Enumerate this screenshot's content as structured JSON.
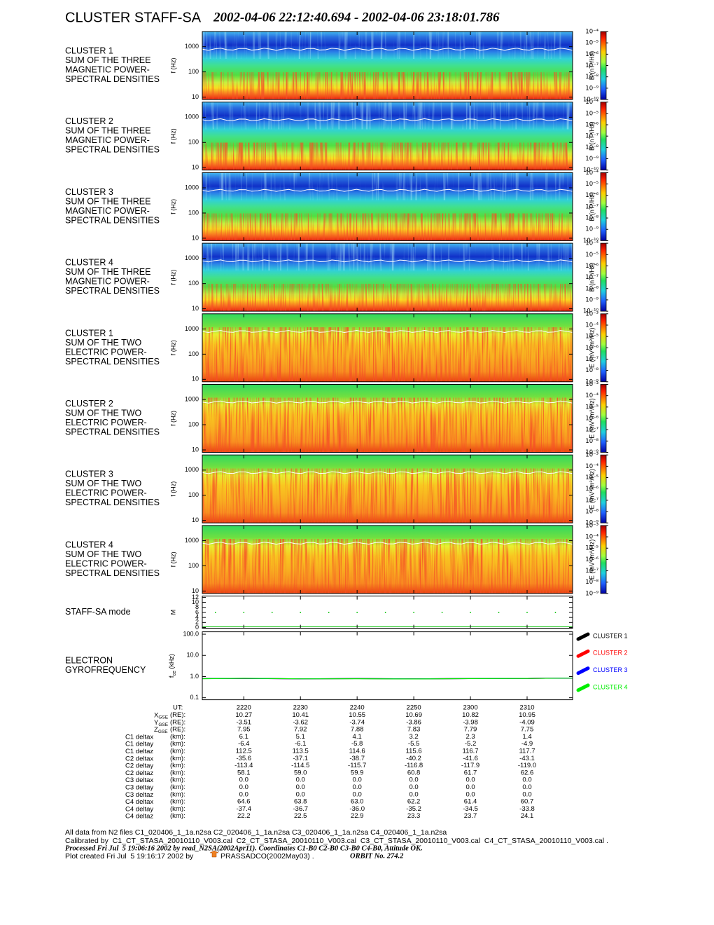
{
  "title": "CLUSTER STAFF-SA",
  "subtitle": "2002-04-06 22:12:40.694 - 2002-04-06 23:18:01.786",
  "chart_data": [
    {
      "type": "spectrogram",
      "label": [
        "CLUSTER 1",
        "SUM OF THE THREE",
        "MAGNETIC POWER-",
        "SPECTRAL DENSITIES"
      ],
      "ylabel": "f (Hz)",
      "log_scale": true,
      "ylim": [
        8,
        4000
      ],
      "yticks": [
        10,
        100,
        1000
      ],
      "colorbar_label": "B (nT²/Hz)",
      "colorbar_lim": [
        1e-10,
        0.0001
      ],
      "colorbar_ticks": [
        {
          "value": 0.0001,
          "label": "10⁻⁴"
        },
        {
          "value": 1e-05,
          "label": "10⁻⁵"
        },
        {
          "value": 1e-06,
          "label": "10⁻⁶"
        },
        {
          "value": 1e-07,
          "label": "10⁻⁷"
        },
        {
          "value": 1e-08,
          "label": "10⁻⁸"
        },
        {
          "value": 1e-09,
          "label": "10⁻⁹"
        },
        {
          "value": 1e-10,
          "label": "10⁻¹⁰"
        }
      ]
    },
    {
      "type": "spectrogram",
      "label": [
        "CLUSTER 2",
        "SUM OF THE THREE",
        "MAGNETIC POWER-",
        "SPECTRAL DENSITIES"
      ],
      "ylabel": "f (Hz)",
      "log_scale": true,
      "ylim": [
        8,
        4000
      ],
      "yticks": [
        10,
        100,
        1000
      ],
      "colorbar_label": "B (nT²/Hz)",
      "colorbar_lim": [
        1e-10,
        0.0001
      ],
      "colorbar_ticks": [
        {
          "value": 0.0001,
          "label": "10⁻⁴"
        },
        {
          "value": 1e-05,
          "label": "10⁻⁵"
        },
        {
          "value": 1e-06,
          "label": "10⁻⁶"
        },
        {
          "value": 1e-07,
          "label": "10⁻⁷"
        },
        {
          "value": 1e-08,
          "label": "10⁻⁸"
        },
        {
          "value": 1e-09,
          "label": "10⁻⁹"
        },
        {
          "value": 1e-10,
          "label": "10⁻¹⁰"
        }
      ]
    },
    {
      "type": "spectrogram",
      "label": [
        "CLUSTER 3",
        "SUM OF THE THREE",
        "MAGNETIC POWER-",
        "SPECTRAL DENSITIES"
      ],
      "ylabel": "f (Hz)",
      "log_scale": true,
      "ylim": [
        8,
        4000
      ],
      "yticks": [
        10,
        100,
        1000
      ],
      "colorbar_label": "B (nT²/Hz)",
      "colorbar_lim": [
        1e-10,
        0.0001
      ],
      "colorbar_ticks": [
        {
          "value": 0.0001,
          "label": "10⁻⁴"
        },
        {
          "value": 1e-05,
          "label": "10⁻⁵"
        },
        {
          "value": 1e-06,
          "label": "10⁻⁶"
        },
        {
          "value": 1e-07,
          "label": "10⁻⁷"
        },
        {
          "value": 1e-08,
          "label": "10⁻⁸"
        },
        {
          "value": 1e-09,
          "label": "10⁻⁹"
        },
        {
          "value": 1e-10,
          "label": "10⁻¹⁰"
        }
      ]
    },
    {
      "type": "spectrogram",
      "label": [
        "CLUSTER 4",
        "SUM OF THE THREE",
        "MAGNETIC POWER-",
        "SPECTRAL DENSITIES"
      ],
      "ylabel": "f (Hz)",
      "log_scale": true,
      "ylim": [
        8,
        4000
      ],
      "yticks": [
        10,
        100,
        1000
      ],
      "colorbar_label": "B (nT²/Hz)",
      "colorbar_lim": [
        1e-10,
        0.0001
      ],
      "colorbar_ticks": [
        {
          "value": 0.0001,
          "label": "10⁻⁴"
        },
        {
          "value": 1e-05,
          "label": "10⁻⁵"
        },
        {
          "value": 1e-06,
          "label": "10⁻⁶"
        },
        {
          "value": 1e-07,
          "label": "10⁻⁷"
        },
        {
          "value": 1e-08,
          "label": "10⁻⁸"
        },
        {
          "value": 1e-09,
          "label": "10⁻⁹"
        },
        {
          "value": 1e-10,
          "label": "10⁻¹⁰"
        }
      ]
    },
    {
      "type": "spectrogram",
      "label": [
        "CLUSTER 1",
        "SUM OF THE TWO",
        "ELECTRIC POWER-",
        "SPECTRAL DENSITIES"
      ],
      "ylabel": "f (Hz)",
      "log_scale": true,
      "ylim": [
        8,
        4000
      ],
      "yticks": [
        10,
        100,
        1000
      ],
      "colorbar_label": "E (mV²/m²/Hz)",
      "colorbar_lim": [
        1e-09,
        0.001
      ],
      "colorbar_ticks": [
        {
          "value": 0.001,
          "label": "10⁻³"
        },
        {
          "value": 0.0001,
          "label": "10⁻⁴"
        },
        {
          "value": 1e-05,
          "label": "10⁻⁵"
        },
        {
          "value": 1e-06,
          "label": "10⁻⁶"
        },
        {
          "value": 1e-07,
          "label": "10⁻⁷"
        },
        {
          "value": 1e-08,
          "label": "10⁻⁸"
        },
        {
          "value": 1e-09,
          "label": "10⁻⁹"
        }
      ]
    },
    {
      "type": "spectrogram",
      "label": [
        "CLUSTER 2",
        "SUM OF THE TWO",
        "ELECTRIC POWER-",
        "SPECTRAL DENSITIES"
      ],
      "ylabel": "f (Hz)",
      "log_scale": true,
      "ylim": [
        8,
        4000
      ],
      "yticks": [
        10,
        100,
        1000
      ],
      "colorbar_label": "E (mV²/m²/Hz)",
      "colorbar_lim": [
        1e-09,
        0.001
      ],
      "colorbar_ticks": [
        {
          "value": 0.001,
          "label": "10⁻³"
        },
        {
          "value": 0.0001,
          "label": "10⁻⁴"
        },
        {
          "value": 1e-05,
          "label": "10⁻⁵"
        },
        {
          "value": 1e-06,
          "label": "10⁻⁶"
        },
        {
          "value": 1e-07,
          "label": "10⁻⁷"
        },
        {
          "value": 1e-08,
          "label": "10⁻⁸"
        },
        {
          "value": 1e-09,
          "label": "10⁻⁹"
        }
      ]
    },
    {
      "type": "spectrogram",
      "label": [
        "CLUSTER 3",
        "SUM OF THE TWO",
        "ELECTRIC POWER-",
        "SPECTRAL DENSITIES"
      ],
      "ylabel": "f (Hz)",
      "log_scale": true,
      "ylim": [
        8,
        4000
      ],
      "yticks": [
        10,
        100,
        1000
      ],
      "colorbar_label": "E (mV²/m²/Hz)",
      "colorbar_lim": [
        1e-09,
        0.001
      ],
      "colorbar_ticks": [
        {
          "value": 0.001,
          "label": "10⁻³"
        },
        {
          "value": 0.0001,
          "label": "10⁻⁴"
        },
        {
          "value": 1e-05,
          "label": "10⁻⁵"
        },
        {
          "value": 1e-06,
          "label": "10⁻⁶"
        },
        {
          "value": 1e-07,
          "label": "10⁻⁷"
        },
        {
          "value": 1e-08,
          "label": "10⁻⁸"
        },
        {
          "value": 1e-09,
          "label": "10⁻⁹"
        }
      ]
    },
    {
      "type": "spectrogram",
      "label": [
        "CLUSTER 4",
        "SUM OF THE TWO",
        "ELECTRIC POWER-",
        "SPECTRAL DENSITIES"
      ],
      "ylabel": "f (Hz)",
      "log_scale": true,
      "ylim": [
        8,
        4000
      ],
      "yticks": [
        10,
        100,
        1000
      ],
      "colorbar_label": "E (mV²/m²/Hz)",
      "colorbar_lim": [
        1e-09,
        0.001
      ],
      "colorbar_ticks": [
        {
          "value": 0.001,
          "label": "10⁻³"
        },
        {
          "value": 0.0001,
          "label": "10⁻⁴"
        },
        {
          "value": 1e-05,
          "label": "10⁻⁵"
        },
        {
          "value": 1e-06,
          "label": "10⁻⁶"
        },
        {
          "value": 1e-07,
          "label": "10⁻⁷"
        },
        {
          "value": 1e-08,
          "label": "10⁻⁸"
        },
        {
          "value": 1e-09,
          "label": "10⁻⁹"
        }
      ]
    },
    {
      "type": "scatter",
      "label": [
        "STAFF-SA mode"
      ],
      "ylabel": "M",
      "ylim": [
        -0.3,
        12.5
      ],
      "yticks": [
        0,
        2,
        4,
        6,
        8,
        10,
        12
      ],
      "xlim": [
        12.678,
        78.03
      ],
      "x": [
        15,
        20,
        25,
        30,
        35,
        40,
        45,
        50,
        55,
        60,
        65,
        70,
        75
      ],
      "values": [
        6,
        6,
        6,
        6,
        6,
        6,
        6,
        6,
        6,
        6,
        6,
        6,
        6
      ],
      "color": "#00c000"
    },
    {
      "type": "line",
      "label": [
        "ELECTRON",
        "GYROFREQUENCY"
      ],
      "ylabel": [
        "f",
        "ce",
        " (kHz)"
      ],
      "log_scale": true,
      "ylim": [
        0.08,
        130
      ],
      "yticks": [
        0.1,
        {
          "value": 1,
          "label": "1.0"
        },
        {
          "value": 10,
          "label": "10.0"
        },
        {
          "value": 100,
          "label": "100.0"
        }
      ],
      "xlim": [
        12.678,
        78.03
      ],
      "xticks": [
        {
          "value": 20,
          "label": "2220"
        },
        {
          "value": 30,
          "label": "2230"
        },
        {
          "value": 40,
          "label": "2240"
        },
        {
          "value": 50,
          "label": "2250"
        },
        {
          "value": 60,
          "label": "2300"
        },
        {
          "value": 70,
          "label": "2310"
        }
      ],
      "legend": "right",
      "series": [
        {
          "name": "CLUSTER 1",
          "color": "#000000",
          "x": [
            12.7,
            20,
            30,
            40,
            50,
            60,
            70,
            78
          ],
          "values": [
            0.8,
            0.82,
            0.78,
            0.8,
            0.78,
            0.8,
            0.82,
            0.85
          ]
        },
        {
          "name": "CLUSTER 2",
          "color": "#ff0000",
          "x": [
            12.7,
            20,
            30,
            40,
            50,
            60,
            70,
            78
          ],
          "values": [
            0.8,
            0.82,
            0.78,
            0.8,
            0.78,
            0.8,
            0.82,
            0.85
          ]
        },
        {
          "name": "CLUSTER 3",
          "color": "#0000ff",
          "x": [
            12.7,
            20,
            30,
            40,
            50,
            60,
            70,
            78
          ],
          "values": [
            0.8,
            0.82,
            0.78,
            0.8,
            0.78,
            0.8,
            0.82,
            0.85
          ]
        },
        {
          "name": "CLUSTER 4",
          "color": "#00ee00",
          "x": [
            12.7,
            20,
            30,
            40,
            50,
            60,
            70,
            78
          ],
          "values": [
            0.79,
            0.83,
            0.78,
            0.79,
            0.77,
            0.8,
            0.82,
            0.84
          ]
        }
      ]
    }
  ],
  "ephemeris": {
    "ut_label": "UT:",
    "rows": [
      {
        "name": "X",
        "sub": "GSE",
        "unit": "(RE):",
        "values": [
          "10.27",
          "10.41",
          "10.55",
          "10.69",
          "10.82",
          "10.95"
        ]
      },
      {
        "name": "Y",
        "sub": "GSE",
        "unit": "(RE):",
        "values": [
          "-3.51",
          "-3.62",
          "-3.74",
          "-3.86",
          "-3.98",
          "-4.09"
        ]
      },
      {
        "name": "Z",
        "sub": "GSE",
        "unit": "(RE):",
        "values": [
          "7.95",
          "7.92",
          "7.88",
          "7.83",
          "7.79",
          "7.75"
        ]
      },
      {
        "name": "C1 deltax",
        "unit": "(km):",
        "values": [
          "6.1",
          "5.1",
          "4.1",
          "3.2",
          "2.3",
          "1.4"
        ]
      },
      {
        "name": "C1 deltay",
        "unit": "(km):",
        "values": [
          "-6.4",
          "-6.1",
          "-5.8",
          "-5.5",
          "-5.2",
          "-4.9"
        ]
      },
      {
        "name": "C1 deltaz",
        "unit": "(km):",
        "values": [
          "112.5",
          "113.5",
          "114.6",
          "115.6",
          "116.7",
          "117.7"
        ]
      },
      {
        "name": "C2 deltax",
        "unit": "(km):",
        "values": [
          "-35.6",
          "-37.1",
          "-38.7",
          "-40.2",
          "-41.6",
          "-43.1"
        ]
      },
      {
        "name": "C2 deltay",
        "unit": "(km):",
        "values": [
          "-113.4",
          "-114.5",
          "-115.7",
          "-116.8",
          "-117.9",
          "-119.0"
        ]
      },
      {
        "name": "C2 deltaz",
        "unit": "(km):",
        "values": [
          "58.1",
          "59.0",
          "59.9",
          "60.8",
          "61.7",
          "62.6"
        ]
      },
      {
        "name": "C3 deltax",
        "unit": "(km):",
        "values": [
          "0.0",
          "0.0",
          "0.0",
          "0.0",
          "0.0",
          "0.0"
        ]
      },
      {
        "name": "C3 deltay",
        "unit": "(km):",
        "values": [
          "0.0",
          "0.0",
          "0.0",
          "0.0",
          "0.0",
          "0.0"
        ]
      },
      {
        "name": "C3 deltaz",
        "unit": "(km):",
        "values": [
          "0.0",
          "0.0",
          "0.0",
          "0.0",
          "0.0",
          "0.0"
        ]
      },
      {
        "name": "C4 deltax",
        "unit": "(km):",
        "values": [
          "64.6",
          "63.8",
          "63.0",
          "62.2",
          "61.4",
          "60.7"
        ]
      },
      {
        "name": "C4 deltay",
        "unit": "(km):",
        "values": [
          "-37.4",
          "-36.7",
          "-36.0",
          "-35.2",
          "-34.5",
          "-33.8"
        ]
      },
      {
        "name": "C4 deltaz",
        "unit": "(km):",
        "values": [
          "22.2",
          "22.5",
          "22.9",
          "23.3",
          "23.7",
          "24.1"
        ]
      }
    ]
  },
  "footer": {
    "files": "All data from N2 files C1_020406_1_1a.n2sa C2_020406_1_1a.n2sa C3_020406_1_1a.n2sa C4_020406_1_1a.n2sa",
    "calibration": "Calibrated by  C1_CT_STASA_20010110_V003.cal  C2_CT_STASA_20010110_V003.cal  C3_CT_STASA_20010110_V003.cal  C4_CT_STASA_20010110_V003.cal .",
    "processed": "Processed Fri Jul  5 19:06:16 2002 by read_N2SA(2002Apr11). Coordinates C1-B0 C2-B0 C3-B0 C4-B0, Attitude OK.",
    "plot_created": "Plot created Fri Jul  5 19:16:17 2002 by",
    "program": "PRASSADCO(2002May03) .",
    "orbit": "ORBIT No. 274.2"
  }
}
